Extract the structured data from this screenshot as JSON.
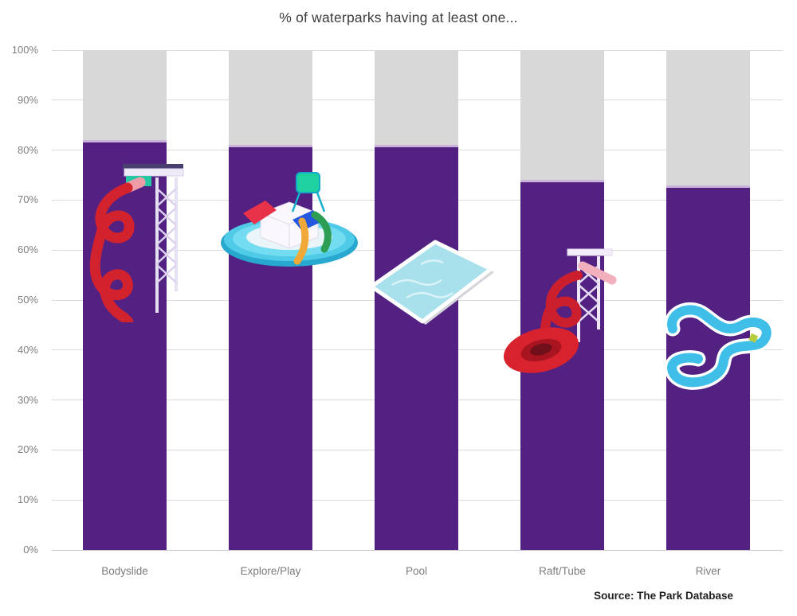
{
  "chart": {
    "title": "% of waterparks having at least one...",
    "source": "Source: The Park Database",
    "y_ticks": [
      "100%",
      "90%",
      "80%",
      "70%",
      "60%",
      "50%",
      "40%",
      "30%",
      "20%",
      "10%",
      "0%"
    ]
  },
  "chart_data": {
    "type": "bar",
    "title": "% of waterparks having at least one...",
    "categories": [
      "Bodyslide",
      "Explore/Play",
      "Pool",
      "Raft/Tube",
      "River"
    ],
    "values": [
      82,
      81,
      81,
      74,
      73
    ],
    "remainder_to_100": [
      18,
      19,
      19,
      26,
      27
    ],
    "xlabel": "",
    "ylabel": "",
    "ylim": [
      0,
      100
    ],
    "y_tick_step": 10,
    "grid": true,
    "legend": "none",
    "bar_color": "#522182",
    "remainder_color": "#d8d8d8",
    "bar_top_accent_color": "#cbb4dc",
    "gridline_color": "#dadada",
    "axis_label_color": "#7f7f7f",
    "source_note": "Source: The Park Database",
    "icons": [
      "bodyslide-icon",
      "explore-play-icon",
      "pool-icon",
      "raft-tube-icon",
      "river-icon"
    ]
  }
}
